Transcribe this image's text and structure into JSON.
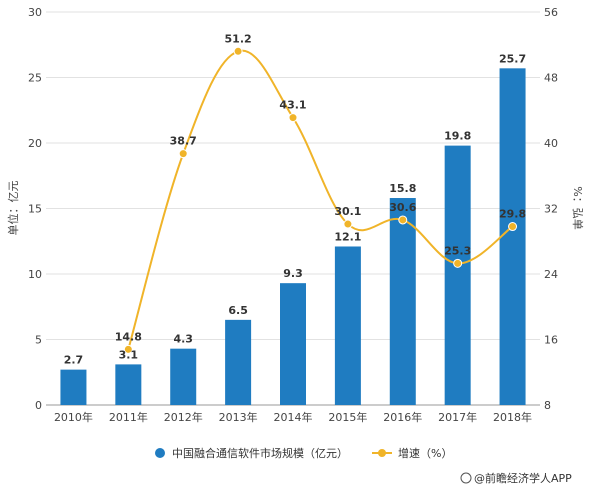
{
  "chart_data": {
    "type": "bar+line",
    "categories": [
      "2010年",
      "2011年",
      "2012年",
      "2013年",
      "2014年",
      "2015年",
      "2016年",
      "2017年",
      "2018年"
    ],
    "series": [
      {
        "name": "中国融合通信软件市场规模（亿元）",
        "type": "bar",
        "axis": "left",
        "color": "#1f7cc1",
        "values": [
          2.7,
          3.1,
          4.3,
          6.5,
          9.3,
          12.1,
          15.8,
          19.8,
          25.7
        ]
      },
      {
        "name": "增速（%）",
        "type": "line",
        "axis": "right",
        "color": "#f0b429",
        "values": [
          null,
          14.8,
          38.7,
          51.2,
          43.1,
          30.1,
          30.6,
          25.3,
          29.8
        ]
      }
    ],
    "ylabel": "单位：亿元",
    "y2label": "%：弘单",
    "ylim": [
      0,
      30
    ],
    "yticks": [
      0,
      5,
      10,
      15,
      20,
      25,
      30
    ],
    "y2lim": [
      8,
      56
    ],
    "y2ticks": [
      8,
      16,
      24,
      32,
      40,
      48,
      56
    ],
    "grid": true,
    "legend_position": "bottom"
  },
  "source": "@前瞻经济学人APP",
  "source_icon": "wechat-like-icon"
}
